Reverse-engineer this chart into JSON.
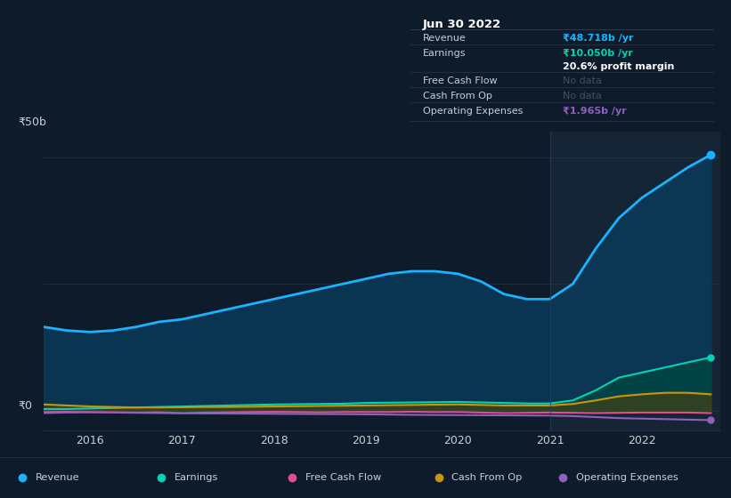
{
  "background_color": "#0d1b2a",
  "chart_bg_color": "#0d1b2a",
  "highlight_bg_color": "#162535",
  "years": [
    2015.5,
    2015.75,
    2016.0,
    2016.25,
    2016.5,
    2016.75,
    2017.0,
    2017.25,
    2017.5,
    2017.75,
    2018.0,
    2018.25,
    2018.5,
    2018.75,
    2019.0,
    2019.25,
    2019.5,
    2019.75,
    2020.0,
    2020.25,
    2020.5,
    2020.75,
    2021.0,
    2021.25,
    2021.5,
    2021.75,
    2022.0,
    2022.25,
    2022.5,
    2022.75
  ],
  "revenue": [
    16.5,
    15.8,
    15.5,
    15.8,
    16.5,
    17.5,
    18.0,
    19.0,
    20.0,
    21.0,
    22.0,
    23.0,
    24.0,
    25.0,
    26.0,
    27.0,
    27.5,
    27.5,
    27.0,
    25.5,
    23.0,
    22.0,
    22.0,
    25.0,
    32.0,
    38.0,
    42.0,
    45.0,
    48.0,
    50.5
  ],
  "earnings": [
    0.3,
    0.3,
    0.4,
    0.5,
    0.6,
    0.7,
    0.8,
    0.9,
    1.0,
    1.1,
    1.2,
    1.25,
    1.3,
    1.35,
    1.5,
    1.55,
    1.6,
    1.65,
    1.7,
    1.6,
    1.5,
    1.4,
    1.4,
    2.0,
    4.0,
    6.5,
    7.5,
    8.5,
    9.5,
    10.5
  ],
  "free_cash_flow": [
    -0.3,
    -0.25,
    -0.3,
    -0.35,
    -0.4,
    -0.35,
    -0.5,
    -0.4,
    -0.35,
    -0.3,
    -0.25,
    -0.3,
    -0.35,
    -0.3,
    -0.3,
    -0.3,
    -0.25,
    -0.3,
    -0.3,
    -0.4,
    -0.5,
    -0.45,
    -0.4,
    -0.45,
    -0.5,
    -0.45,
    -0.4,
    -0.4,
    -0.4,
    -0.5
  ],
  "cash_from_op": [
    1.2,
    1.0,
    0.8,
    0.7,
    0.6,
    0.6,
    0.65,
    0.7,
    0.7,
    0.75,
    0.8,
    0.85,
    0.9,
    0.95,
    1.0,
    1.05,
    1.1,
    1.15,
    1.2,
    1.1,
    1.0,
    1.0,
    1.0,
    1.3,
    2.0,
    2.8,
    3.2,
    3.5,
    3.5,
    3.2
  ],
  "operating_expenses": [
    -0.5,
    -0.4,
    -0.35,
    -0.4,
    -0.45,
    -0.5,
    -0.55,
    -0.58,
    -0.6,
    -0.62,
    -0.65,
    -0.68,
    -0.7,
    -0.72,
    -0.75,
    -0.8,
    -0.85,
    -0.88,
    -0.9,
    -0.92,
    -0.95,
    -0.98,
    -1.0,
    -1.1,
    -1.3,
    -1.5,
    -1.6,
    -1.7,
    -1.8,
    -1.9
  ],
  "highlight_start": 2021.0,
  "xlim_start": 2015.5,
  "xlim_end": 2022.85,
  "ylim": [
    -4,
    55
  ],
  "y50_val": 50,
  "y0_val": 0,
  "xtick_labels": [
    "2016",
    "2017",
    "2018",
    "2019",
    "2020",
    "2021",
    "2022"
  ],
  "xtick_values": [
    2016,
    2017,
    2018,
    2019,
    2020,
    2021,
    2022
  ],
  "revenue_color": "#1ab3ff",
  "earnings_color": "#00d4b4",
  "free_cash_flow_color": "#e05090",
  "cash_from_op_color": "#c8960a",
  "operating_expenses_color": "#9060c0",
  "revenue_fill_color": "#0a3a5a",
  "earnings_fill_color": "#004840",
  "cash_from_op_fill_color": "#5a4000",
  "tooltip_bg": "#090e14",
  "tooltip_border": "#2a3a4a",
  "tooltip_title": "Jun 30 2022",
  "tooltip_revenue_label": "Revenue",
  "tooltip_revenue_value": "₹48.718b /yr",
  "tooltip_earnings_label": "Earnings",
  "tooltip_earnings_value": "₹10.050b /yr",
  "tooltip_margin": "20.6% profit margin",
  "tooltip_fcf_label": "Free Cash Flow",
  "tooltip_fcf_value": "No data",
  "tooltip_cfop_label": "Cash From Op",
  "tooltip_cfop_value": "No data",
  "tooltip_opex_label": "Operating Expenses",
  "tooltip_opex_value": "₹1.965b /yr",
  "legend_revenue": "Revenue",
  "legend_earnings": "Earnings",
  "legend_fcf": "Free Cash Flow",
  "legend_cfop": "Cash From Op",
  "legend_opex": "Operating Expenses",
  "gridline_color": "#1e3048",
  "text_color": "#c8d0d8",
  "title_color": "#ffffff",
  "muted_text_color": "#556070",
  "no_data_color": "#445060"
}
